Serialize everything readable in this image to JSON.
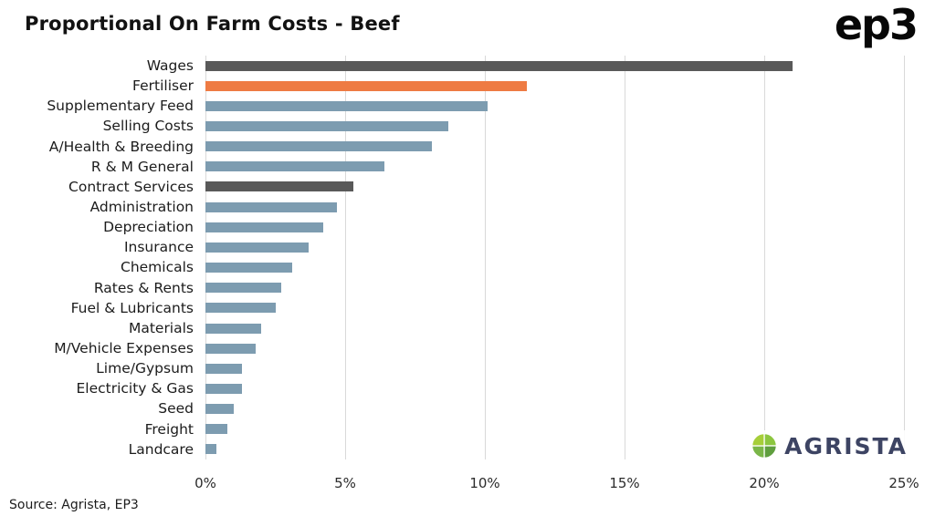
{
  "header": {
    "title": "Proportional On Farm Costs - Beef",
    "ep3_logo_text": "ep3"
  },
  "footer": {
    "source_text": "Source: Agrista, EP3",
    "agrista_logo_text": "AGRISTA"
  },
  "colors": {
    "default_bar": "#7d9cb0",
    "highlight_bar": "#ee7b43",
    "dark_bar": "#595959",
    "gridline": "#d9d9d9",
    "logo_navy": "#3d4463",
    "leaf_greens": [
      "#8cc63f",
      "#5f9e3e",
      "#7ab648",
      "#a6ce39"
    ]
  },
  "chart_data": {
    "type": "bar",
    "orientation": "horizontal",
    "title": "Proportional On Farm Costs - Beef",
    "xlabel": "",
    "ylabel": "",
    "xlim": [
      0,
      25
    ],
    "grid": true,
    "tick_values": [
      0,
      5,
      10,
      15,
      20,
      25
    ],
    "tick_labels": [
      "0%",
      "5%",
      "10%",
      "15%",
      "20%",
      "25%"
    ],
    "categories": [
      "Wages",
      "Fertiliser",
      "Supplementary Feed",
      "Selling Costs",
      "A/Health & Breeding",
      "R & M General",
      "Contract Services",
      "Administration",
      "Depreciation",
      "Insurance",
      "Chemicals",
      "Rates & Rents",
      "Fuel & Lubricants",
      "Materials",
      "M/Vehicle Expenses",
      "Lime/Gypsum",
      "Electricity & Gas",
      "Seed",
      "Freight",
      "Landcare"
    ],
    "values": [
      21.0,
      11.5,
      10.1,
      8.7,
      8.1,
      6.4,
      5.3,
      4.7,
      4.2,
      3.7,
      3.1,
      2.7,
      2.5,
      2.0,
      1.8,
      1.3,
      1.3,
      1.0,
      0.8,
      0.4
    ],
    "bar_colors": [
      "#595959",
      "#ee7b43",
      "#7d9cb0",
      "#7d9cb0",
      "#7d9cb0",
      "#7d9cb0",
      "#595959",
      "#7d9cb0",
      "#7d9cb0",
      "#7d9cb0",
      "#7d9cb0",
      "#7d9cb0",
      "#7d9cb0",
      "#7d9cb0",
      "#7d9cb0",
      "#7d9cb0",
      "#7d9cb0",
      "#7d9cb0",
      "#7d9cb0",
      "#7d9cb0"
    ]
  }
}
